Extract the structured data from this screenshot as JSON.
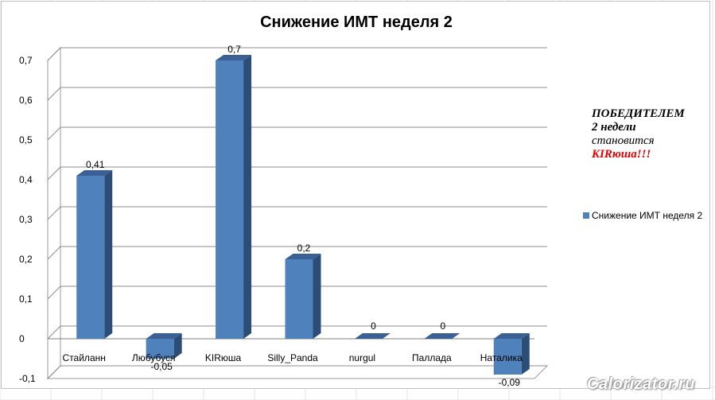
{
  "chart_data": {
    "type": "bar",
    "title": "Снижение ИМТ неделя 2",
    "categories": [
      "Стайланн",
      "Любубуся",
      "KIRюша",
      "Silly_Panda",
      "nurgul",
      "Паллада",
      "Наталика"
    ],
    "series": [
      {
        "name": "Снижение ИМТ неделя 2",
        "values": [
          0.41,
          -0.05,
          0.7,
          0.2,
          0,
          0,
          -0.09
        ],
        "labels": [
          "0,41",
          "-0,05",
          "0,7",
          "0,2",
          "0",
          "0",
          "-0,09"
        ],
        "color": "#4f81bd"
      }
    ],
    "yticks": [
      -0.1,
      0,
      0.1,
      0.2,
      0.3,
      0.4,
      0.5,
      0.6,
      0.7
    ],
    "ytick_labels": [
      "-0,1",
      "0",
      "0,1",
      "0,2",
      "0,3",
      "0,4",
      "0,5",
      "0,6",
      "0,7"
    ],
    "ylim": [
      -0.1,
      0.7
    ],
    "grid": true,
    "legend_position": "right",
    "three_d": true
  },
  "annotation": {
    "line1": "ПОБЕДИТЕЛЕМ",
    "line2": "2 недели",
    "line3": "становится",
    "line4": "KIRюша!!!"
  },
  "watermark": "Calorizator.ru",
  "colors": {
    "bar_front": "#4f81bd",
    "bar_side": "#2c4d75",
    "bar_top": "#3a6094",
    "annotation_highlight": "#e00000"
  }
}
